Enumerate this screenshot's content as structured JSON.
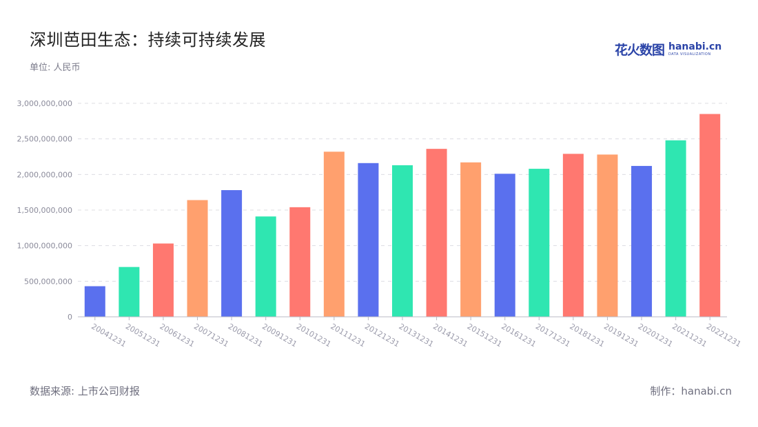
{
  "header": {
    "title": "深圳芭田生态：持续可持续发展",
    "subtitle": "单位: 人民币"
  },
  "logo": {
    "cn": "花火数图",
    "en": "hanabi.cn",
    "sub": "DATA VISUALIZATION"
  },
  "footer": {
    "source": "数据来源: 上市公司财报",
    "credit": "制作：hanabi.cn"
  },
  "colors": {
    "blue": "#5a70ee",
    "green": "#2fe6b1",
    "red": "#ff7870",
    "orange": "#ffa06e",
    "grid": "#dcdce2",
    "axis": "#b8b8c4"
  },
  "chart_data": {
    "type": "bar",
    "categories": [
      "20041231",
      "20051231",
      "20061231",
      "20071231",
      "20081231",
      "20091231",
      "20101231",
      "20111231",
      "20121231",
      "20131231",
      "20141231",
      "20151231",
      "20161231",
      "20171231",
      "20181231",
      "20191231",
      "20201231",
      "20211231",
      "20221231"
    ],
    "values": [
      430000000,
      700000000,
      1030000000,
      1640000000,
      1780000000,
      1410000000,
      1540000000,
      2320000000,
      2160000000,
      2130000000,
      2360000000,
      2170000000,
      2010000000,
      2080000000,
      2290000000,
      2280000000,
      2120000000,
      2480000000,
      2850000000
    ],
    "bar_colors": [
      "#5a70ee",
      "#2fe6b1",
      "#ff7870",
      "#ffa06e",
      "#5a70ee",
      "#2fe6b1",
      "#ff7870",
      "#ffa06e",
      "#5a70ee",
      "#2fe6b1",
      "#ff7870",
      "#ffa06e",
      "#5a70ee",
      "#2fe6b1",
      "#ff7870",
      "#ffa06e",
      "#5a70ee",
      "#2fe6b1",
      "#ff7870"
    ],
    "y_ticks": [
      "0",
      "500,000,000",
      "1,000,000,000",
      "1,500,000,000",
      "2,000,000,000",
      "2,500,000,000",
      "3,000,000,000"
    ],
    "ylim": [
      0,
      3000000000
    ],
    "grid": true,
    "grid_style": "dashed",
    "legend": "none"
  }
}
